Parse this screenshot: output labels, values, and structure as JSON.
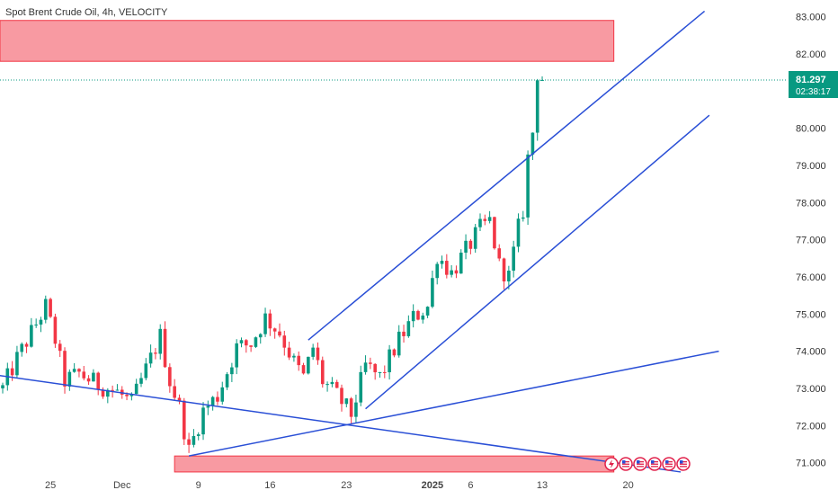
{
  "chart_data": {
    "type": "candlestick",
    "title": "Spot Brent Crude Oil, 4h, VELOCITY",
    "ylim": [
      70.7,
      83.45
    ],
    "y_ticks": [
      "83.000",
      "82.000",
      "81.000",
      "80.000",
      "79.000",
      "78.000",
      "77.000",
      "76.000",
      "75.000",
      "74.000",
      "73.000",
      "72.000",
      "71.000"
    ],
    "y_tick_values": [
      83,
      82,
      81,
      80,
      79,
      78,
      77,
      76,
      75,
      74,
      73,
      72,
      71
    ],
    "x_labels": [
      {
        "label": "25",
        "bar": 10,
        "bold": false
      },
      {
        "label": "Dec",
        "bar": 25,
        "bold": false
      },
      {
        "label": "9",
        "bar": 41,
        "bold": false
      },
      {
        "label": "16",
        "bar": 56,
        "bold": false
      },
      {
        "label": "23",
        "bar": 72,
        "bold": false
      },
      {
        "label": "2025",
        "bar": 90,
        "bold": true
      },
      {
        "label": "6",
        "bar": 98,
        "bold": false
      },
      {
        "label": "13",
        "bar": 113,
        "bold": false
      },
      {
        "label": "20",
        "bar": 131,
        "bold": false
      }
    ],
    "total_bars": 155,
    "price_now": {
      "value": 81.297,
      "label": "81.297",
      "countdown": "02:38:17",
      "color": "#089981"
    },
    "up_color": "#089981",
    "down_color": "#f23645",
    "zones": [
      {
        "name": "resistance-zone",
        "bar_from": -1,
        "bar_to": 128,
        "price_low": 81.8,
        "price_high": 82.9,
        "color": "#f23645"
      },
      {
        "name": "support-zone",
        "bar_from": 36,
        "bar_to": 128,
        "price_low": 70.75,
        "price_high": 71.18,
        "color": "#f23645"
      }
    ],
    "trendlines": [
      {
        "name": "descending-trendline",
        "from": [
          -1,
          73.35
        ],
        "to": [
          142,
          70.75
        ]
      },
      {
        "name": "channel-upper-line",
        "from": [
          64,
          74.3
        ],
        "to": [
          147,
          83.15
        ]
      },
      {
        "name": "channel-lower-line",
        "from": [
          76,
          72.45
        ],
        "to": [
          148,
          80.35
        ]
      },
      {
        "name": "rising-support-line",
        "from": [
          39,
          71.18
        ],
        "to": [
          150,
          74.0
        ]
      }
    ],
    "anchors": [
      [
        0,
        73.0
      ],
      [
        3,
        73.8
      ],
      [
        6,
        74.5
      ],
      [
        9,
        75.2
      ],
      [
        11,
        74.3
      ],
      [
        13,
        73.2
      ],
      [
        16,
        73.4
      ],
      [
        20,
        73.1
      ],
      [
        24,
        72.9
      ],
      [
        27,
        72.6
      ],
      [
        30,
        73.5
      ],
      [
        33,
        74.4
      ],
      [
        35,
        73.2
      ],
      [
        37,
        72.5
      ],
      [
        39,
        71.3
      ],
      [
        42,
        72.4
      ],
      [
        45,
        72.8
      ],
      [
        49,
        74.1
      ],
      [
        52,
        74.2
      ],
      [
        55,
        74.9
      ],
      [
        58,
        74.5
      ],
      [
        61,
        73.7
      ],
      [
        63,
        73.3
      ],
      [
        65,
        74.1
      ],
      [
        67,
        73.2
      ],
      [
        70,
        72.8
      ],
      [
        73,
        72.3
      ],
      [
        76,
        73.6
      ],
      [
        79,
        73.3
      ],
      [
        83,
        74.3
      ],
      [
        86,
        74.9
      ],
      [
        89,
        75.2
      ],
      [
        91,
        76.6
      ],
      [
        94,
        76.1
      ],
      [
        97,
        76.7
      ],
      [
        100,
        77.3
      ],
      [
        102,
        77.5
      ],
      [
        104,
        76.3
      ],
      [
        106,
        76.0
      ],
      [
        108,
        77.3
      ],
      [
        109,
        77.8
      ],
      [
        110,
        79.2
      ],
      [
        111,
        79.9
      ],
      [
        112,
        81.5
      ],
      [
        113,
        81.3
      ]
    ],
    "events": {
      "count": 6
    }
  }
}
